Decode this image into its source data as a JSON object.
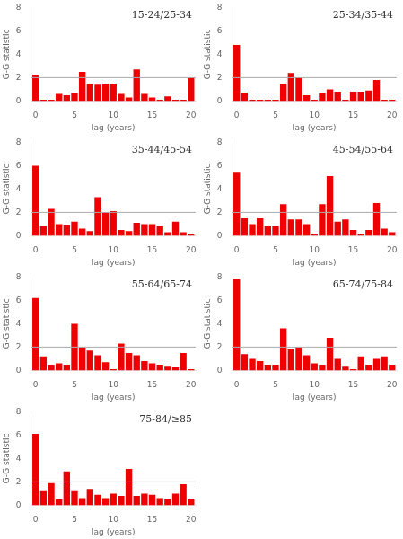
{
  "chart_data": [
    {
      "type": "bar",
      "title": "15-24/25-34",
      "x": [
        0,
        1,
        2,
        3,
        4,
        5,
        6,
        7,
        8,
        9,
        10,
        11,
        12,
        13,
        14,
        15,
        16,
        17,
        18,
        19,
        20
      ],
      "values": [
        2.2,
        0.1,
        0.1,
        0.6,
        0.5,
        0.7,
        2.5,
        1.5,
        1.4,
        1.5,
        1.5,
        0.6,
        0.3,
        2.7,
        0.6,
        0.3,
        0.1,
        0.4,
        0.1,
        0.1,
        2.0
      ],
      "color": "#ee0000",
      "reference_line": {
        "y": 2.0,
        "color": "#aaaaaa"
      },
      "xlim": [
        -0.6,
        20.6
      ],
      "xticks": [
        0,
        5,
        10,
        15,
        20
      ],
      "ylim": [
        0,
        8
      ],
      "yticks": [
        0,
        2,
        4,
        6,
        8
      ],
      "xlabel": "lag (years)",
      "ylabel": "G-G statistic",
      "grid": false
    },
    {
      "type": "bar",
      "title": "25-34/35-44",
      "x": [
        0,
        1,
        2,
        3,
        4,
        5,
        6,
        7,
        8,
        9,
        10,
        11,
        12,
        13,
        14,
        15,
        16,
        17,
        18,
        19,
        20
      ],
      "values": [
        4.8,
        0.7,
        0.1,
        0.1,
        0.1,
        0.1,
        1.5,
        2.4,
        2.0,
        0.5,
        0.1,
        0.7,
        1.0,
        0.8,
        0.1,
        0.8,
        0.8,
        0.9,
        1.8,
        0.1,
        0.1
      ],
      "color": "#ee0000",
      "reference_line": {
        "y": 2.0,
        "color": "#aaaaaa"
      },
      "xlim": [
        -0.6,
        20.6
      ],
      "xticks": [
        0,
        5,
        10,
        15,
        20
      ],
      "ylim": [
        0,
        8
      ],
      "yticks": [
        0,
        2,
        4,
        6,
        8
      ],
      "xlabel": "lag (years)",
      "ylabel": "G-G statistic",
      "grid": false
    },
    {
      "type": "bar",
      "title": "35-44/45-54",
      "x": [
        0,
        1,
        2,
        3,
        4,
        5,
        6,
        7,
        8,
        9,
        10,
        11,
        12,
        13,
        14,
        15,
        16,
        17,
        18,
        19,
        20
      ],
      "values": [
        6.0,
        0.8,
        2.3,
        1.0,
        0.9,
        1.2,
        0.6,
        0.4,
        3.3,
        2.0,
        2.1,
        0.5,
        0.4,
        1.1,
        1.0,
        1.0,
        0.8,
        0.3,
        1.2,
        0.3,
        0.1
      ],
      "color": "#ee0000",
      "reference_line": {
        "y": 2.0,
        "color": "#aaaaaa"
      },
      "xlim": [
        -0.6,
        20.6
      ],
      "xticks": [
        0,
        5,
        10,
        15,
        20
      ],
      "ylim": [
        0,
        8
      ],
      "yticks": [
        0,
        2,
        4,
        6,
        8
      ],
      "xlabel": "lag (years)",
      "ylabel": "G-G statistic",
      "grid": false
    },
    {
      "type": "bar",
      "title": "45-54/55-64",
      "x": [
        0,
        1,
        2,
        3,
        4,
        5,
        6,
        7,
        8,
        9,
        10,
        11,
        12,
        13,
        14,
        15,
        16,
        17,
        18,
        19,
        20
      ],
      "values": [
        5.4,
        1.5,
        1.0,
        1.5,
        0.8,
        0.8,
        2.7,
        1.4,
        1.4,
        1.0,
        0.1,
        2.7,
        5.1,
        1.2,
        1.4,
        0.5,
        0.1,
        0.5,
        2.8,
        0.6,
        0.3
      ],
      "color": "#ee0000",
      "reference_line": {
        "y": 2.0,
        "color": "#aaaaaa"
      },
      "xlim": [
        -0.6,
        20.6
      ],
      "xticks": [
        0,
        5,
        10,
        15,
        20
      ],
      "ylim": [
        0,
        8
      ],
      "yticks": [
        0,
        2,
        4,
        6,
        8
      ],
      "xlabel": "lag (years)",
      "ylabel": "G-G statistic",
      "grid": false
    },
    {
      "type": "bar",
      "title": "55-64/65-74",
      "x": [
        0,
        1,
        2,
        3,
        4,
        5,
        6,
        7,
        8,
        9,
        10,
        11,
        12,
        13,
        14,
        15,
        16,
        17,
        18,
        19,
        20
      ],
      "values": [
        6.2,
        1.2,
        0.5,
        0.6,
        0.5,
        4.0,
        2.0,
        1.7,
        1.3,
        0.7,
        0.1,
        2.3,
        1.5,
        1.3,
        0.8,
        0.6,
        0.5,
        0.4,
        0.3,
        1.5,
        0.1
      ],
      "color": "#ee0000",
      "reference_line": {
        "y": 2.0,
        "color": "#aaaaaa"
      },
      "xlim": [
        -0.6,
        20.6
      ],
      "xticks": [
        0,
        5,
        10,
        15,
        20
      ],
      "ylim": [
        0,
        8
      ],
      "yticks": [
        0,
        2,
        4,
        6,
        8
      ],
      "xlabel": "lag (years)",
      "ylabel": "G-G statistic",
      "grid": false
    },
    {
      "type": "bar",
      "title": "65-74/75-84",
      "x": [
        0,
        1,
        2,
        3,
        4,
        5,
        6,
        7,
        8,
        9,
        10,
        11,
        12,
        13,
        14,
        15,
        16,
        17,
        18,
        19,
        20
      ],
      "values": [
        7.8,
        1.4,
        1.0,
        0.8,
        0.5,
        0.5,
        3.6,
        1.8,
        2.0,
        1.3,
        0.6,
        0.5,
        2.8,
        1.0,
        0.4,
        0.1,
        1.2,
        0.5,
        1.0,
        1.2,
        0.5
      ],
      "color": "#ee0000",
      "reference_line": {
        "y": 2.0,
        "color": "#aaaaaa"
      },
      "xlim": [
        -0.6,
        20.6
      ],
      "xticks": [
        0,
        5,
        10,
        15,
        20
      ],
      "ylim": [
        0,
        8
      ],
      "yticks": [
        0,
        2,
        4,
        6,
        8
      ],
      "xlabel": "lag (years)",
      "ylabel": "G-G statistic",
      "grid": false
    },
    {
      "type": "bar",
      "title": "75-84/≥85",
      "x": [
        0,
        1,
        2,
        3,
        4,
        5,
        6,
        7,
        8,
        9,
        10,
        11,
        12,
        13,
        14,
        15,
        16,
        17,
        18,
        19,
        20
      ],
      "values": [
        6.1,
        1.2,
        1.9,
        0.5,
        2.9,
        1.2,
        0.6,
        1.4,
        0.9,
        0.6,
        1.0,
        0.8,
        3.1,
        0.8,
        1.0,
        0.9,
        0.6,
        0.5,
        1.0,
        1.8,
        0.5
      ],
      "color": "#ee0000",
      "reference_line": {
        "y": 2.0,
        "color": "#aaaaaa"
      },
      "xlim": [
        -0.6,
        20.6
      ],
      "xticks": [
        0,
        5,
        10,
        15,
        20
      ],
      "ylim": [
        0,
        8
      ],
      "yticks": [
        0,
        2,
        4,
        6,
        8
      ],
      "xlabel": "lag (years)",
      "ylabel": "G-G statistic",
      "grid": false
    }
  ]
}
